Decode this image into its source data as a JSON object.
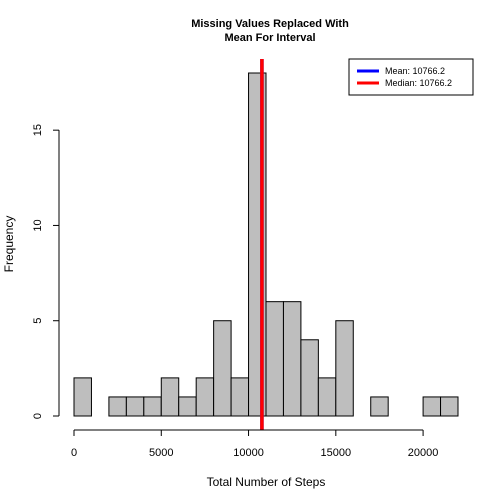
{
  "chart_data": {
    "type": "bar",
    "title": "Missing Values Replaced With",
    "subtitle": "Mean For Interval",
    "xlabel": "Total Number of Steps",
    "ylabel": "Frequency",
    "xlim": [
      0,
      22000
    ],
    "ylim": [
      0,
      18
    ],
    "xticks": [
      0,
      5000,
      10000,
      15000,
      20000
    ],
    "yticks": [
      0,
      5,
      10,
      15
    ],
    "bin_width": 1000,
    "bins": [
      {
        "start": 0,
        "end": 1000,
        "count": 2
      },
      {
        "start": 1000,
        "end": 2000,
        "count": 0
      },
      {
        "start": 2000,
        "end": 3000,
        "count": 1
      },
      {
        "start": 3000,
        "end": 4000,
        "count": 1
      },
      {
        "start": 4000,
        "end": 5000,
        "count": 1
      },
      {
        "start": 5000,
        "end": 6000,
        "count": 2
      },
      {
        "start": 6000,
        "end": 7000,
        "count": 1
      },
      {
        "start": 7000,
        "end": 8000,
        "count": 2
      },
      {
        "start": 8000,
        "end": 9000,
        "count": 5
      },
      {
        "start": 9000,
        "end": 10000,
        "count": 2
      },
      {
        "start": 10000,
        "end": 11000,
        "count": 18
      },
      {
        "start": 11000,
        "end": 12000,
        "count": 6
      },
      {
        "start": 12000,
        "end": 13000,
        "count": 6
      },
      {
        "start": 13000,
        "end": 14000,
        "count": 4
      },
      {
        "start": 14000,
        "end": 15000,
        "count": 2
      },
      {
        "start": 15000,
        "end": 16000,
        "count": 5
      },
      {
        "start": 16000,
        "end": 17000,
        "count": 0
      },
      {
        "start": 17000,
        "end": 18000,
        "count": 1
      },
      {
        "start": 18000,
        "end": 19000,
        "count": 0
      },
      {
        "start": 19000,
        "end": 20000,
        "count": 0
      },
      {
        "start": 20000,
        "end": 21000,
        "count": 1
      },
      {
        "start": 21000,
        "end": 22000,
        "count": 1
      }
    ],
    "bar_color": "#bebebe",
    "vlines": [
      {
        "name": "Mean",
        "value": 10766.2,
        "color": "#0000ff"
      },
      {
        "name": "Median",
        "value": 10766.2,
        "color": "#ff0000"
      }
    ],
    "legend": {
      "position": "top-right",
      "entries": [
        {
          "label": "Mean:  10766.2",
          "color": "#0000ff"
        },
        {
          "label": "Median:  10766.2",
          "color": "#ff0000"
        }
      ]
    },
    "grid": false
  }
}
